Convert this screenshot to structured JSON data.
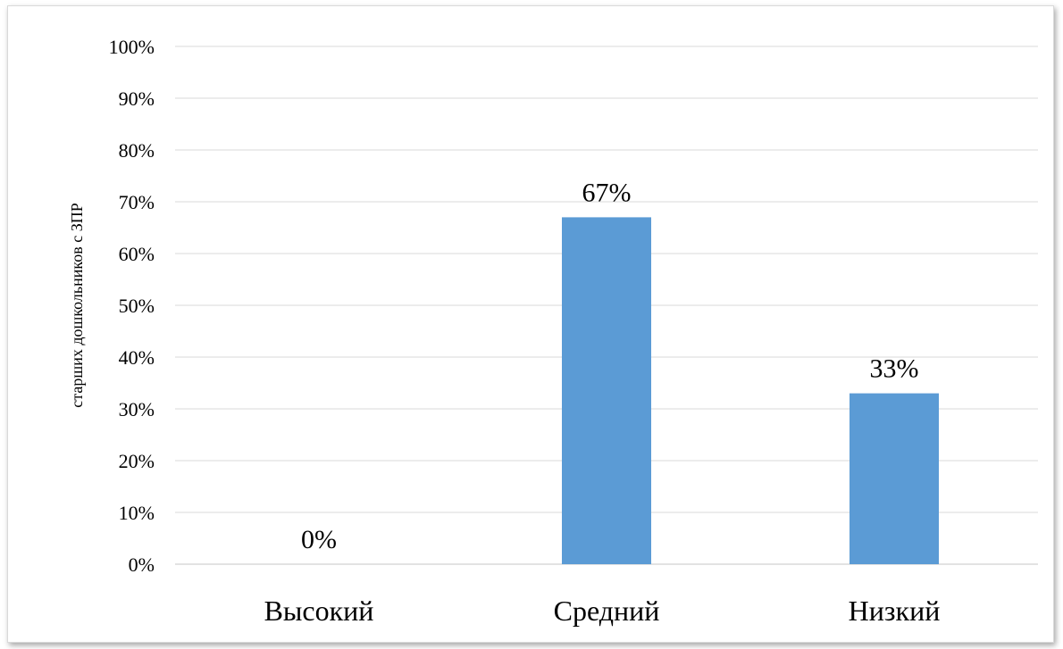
{
  "chart_data": {
    "type": "bar",
    "title": "",
    "xlabel": "",
    "ylabel": "старших дошкольников с ЗПР",
    "categories": [
      "Высокий",
      "Средний",
      "Низкий"
    ],
    "values": [
      0,
      67,
      33
    ],
    "data_labels": [
      "0%",
      "67%",
      "33%"
    ],
    "ylim": [
      0,
      100
    ],
    "yticks": [
      "0%",
      "10%",
      "20%",
      "30%",
      "40%",
      "50%",
      "60%",
      "70%",
      "80%",
      "90%",
      "100%"
    ],
    "grid": true,
    "legend": "none",
    "bar_color": "#5b9bd5",
    "grid_color": "#d9d9d9"
  }
}
